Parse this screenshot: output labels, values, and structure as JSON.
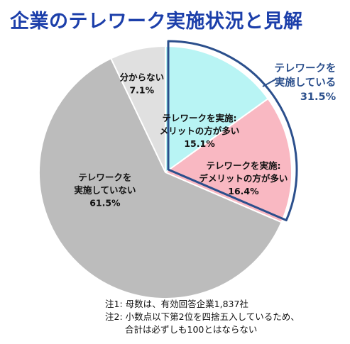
{
  "title": "企業のテレワーク実施状況と見解",
  "colors": {
    "title": "#1c3faa",
    "callout": "#2b4f8c",
    "highlight_border": "#2b4f8c",
    "slice_border": "#ffffff"
  },
  "chart_data": {
    "type": "pie",
    "unit": "%",
    "slices": [
      {
        "label_lines": [
          "テレワークを実施:",
          "メリットの方が多い"
        ],
        "value": 15.1,
        "value_label": "15.1%",
        "color": "#b8f4f4"
      },
      {
        "label_lines": [
          "テレワークを実施:",
          "デメリットの方が多い"
        ],
        "value": 16.4,
        "value_label": "16.4%",
        "color": "#f9b8c2"
      },
      {
        "label_lines": [
          "テレワークを",
          "実施していない"
        ],
        "value": 61.5,
        "value_label": "61.5%",
        "color": "#bcbcbc"
      },
      {
        "label_lines": [
          "分からない"
        ],
        "value": 7.1,
        "value_label": "7.1%",
        "color": "#e0e0e0"
      }
    ],
    "callout": {
      "label_lines": [
        "テレワークを",
        "実施している"
      ],
      "value_label": "31.5%"
    }
  },
  "notes": [
    "注1: 母数は、有効回答企業1,837社",
    "注2: 小数点以下第2位を四捨五入しているため、",
    "合計は必ずしも100とはならない"
  ]
}
